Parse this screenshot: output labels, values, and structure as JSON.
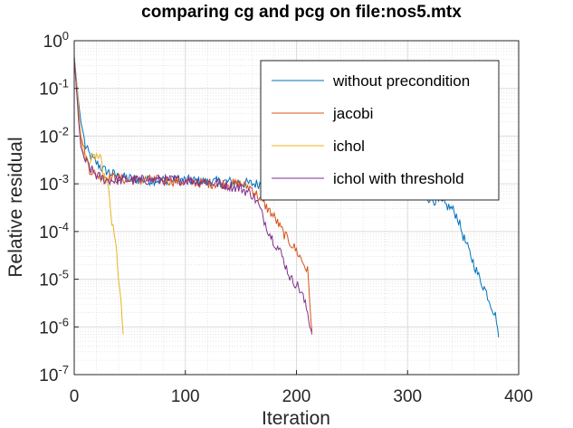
{
  "chart_data": {
    "type": "line",
    "title": "comparing cg and pcg on file:nos5.mtx",
    "xlabel": "Iteration",
    "ylabel": "Relative residual",
    "xlim": [
      0,
      400
    ],
    "ylim": [
      1e-07,
      1
    ],
    "yscale": "log",
    "grid": true,
    "minor_grid": true,
    "legend_position": "top-right",
    "x_ticks": [
      "0",
      "100",
      "200",
      "300",
      "400"
    ],
    "y_ticks": [
      {
        "base": "10",
        "exp": "0"
      },
      {
        "base": "10",
        "exp": "-1"
      },
      {
        "base": "10",
        "exp": "-2"
      },
      {
        "base": "10",
        "exp": "-3"
      },
      {
        "base": "10",
        "exp": "-4"
      },
      {
        "base": "10",
        "exp": "-5"
      },
      {
        "base": "10",
        "exp": "-6"
      },
      {
        "base": "10",
        "exp": "-7"
      }
    ],
    "series": [
      {
        "name": "without precondition",
        "color": "#0072BD",
        "points": [
          [
            0,
            0.45
          ],
          [
            2,
            0.15
          ],
          [
            4,
            0.05
          ],
          [
            6,
            0.02
          ],
          [
            8,
            0.012
          ],
          [
            10,
            0.006
          ],
          [
            14,
            0.004
          ],
          [
            18,
            0.003
          ],
          [
            22,
            0.0025
          ],
          [
            26,
            0.002
          ],
          [
            30,
            0.0018
          ],
          [
            35,
            0.0016
          ],
          [
            40,
            0.0014
          ],
          [
            50,
            0.0013
          ],
          [
            60,
            0.0012
          ],
          [
            80,
            0.0012
          ],
          [
            100,
            0.0012
          ],
          [
            120,
            0.0011
          ],
          [
            140,
            0.0011
          ],
          [
            160,
            0.001
          ],
          [
            180,
            0.001
          ],
          [
            200,
            0.001
          ],
          [
            220,
            0.001
          ],
          [
            240,
            0.0009
          ],
          [
            260,
            0.0009
          ],
          [
            280,
            0.0008
          ],
          [
            290,
            0.0008
          ],
          [
            300,
            0.0007
          ],
          [
            310,
            0.0006
          ],
          [
            320,
            0.0005
          ],
          [
            330,
            0.0004
          ],
          [
            340,
            0.0003
          ],
          [
            345,
            0.0002
          ],
          [
            350,
            8e-05
          ],
          [
            355,
            4e-05
          ],
          [
            360,
            2e-05
          ],
          [
            365,
            1e-05
          ],
          [
            370,
            6e-06
          ],
          [
            375,
            3e-06
          ],
          [
            380,
            1.5e-06
          ],
          [
            382,
            6e-07
          ]
        ]
      },
      {
        "name": "jacobi",
        "color": "#D95319",
        "points": [
          [
            0,
            0.5
          ],
          [
            2,
            0.1
          ],
          [
            4,
            0.03
          ],
          [
            6,
            0.01
          ],
          [
            10,
            0.004
          ],
          [
            14,
            0.002
          ],
          [
            20,
            0.0015
          ],
          [
            30,
            0.0014
          ],
          [
            50,
            0.0012
          ],
          [
            80,
            0.0012
          ],
          [
            100,
            0.0011
          ],
          [
            130,
            0.001
          ],
          [
            150,
            0.001
          ],
          [
            160,
            0.0008
          ],
          [
            170,
            0.0004
          ],
          [
            180,
            0.0002
          ],
          [
            190,
            8e-05
          ],
          [
            200,
            4e-05
          ],
          [
            210,
            1.5e-05
          ],
          [
            214,
            8e-07
          ]
        ]
      },
      {
        "name": "ichol",
        "color": "#EDB120",
        "points": [
          [
            0,
            0.45
          ],
          [
            3,
            0.08
          ],
          [
            6,
            0.008
          ],
          [
            10,
            0.003
          ],
          [
            15,
            0.003
          ],
          [
            20,
            0.004
          ],
          [
            24,
            0.003
          ],
          [
            26,
            0.0015
          ],
          [
            28,
            0.0012
          ],
          [
            30,
            0.001
          ],
          [
            32,
            0.0004
          ],
          [
            34,
            0.00015
          ],
          [
            36,
            8e-05
          ],
          [
            38,
            4e-05
          ],
          [
            40,
            1e-05
          ],
          [
            42,
            3e-06
          ],
          [
            44,
            7e-07
          ]
        ]
      },
      {
        "name": "ichol with threshold",
        "color": "#7E2F8E",
        "points": [
          [
            0,
            0.45
          ],
          [
            2,
            0.1
          ],
          [
            4,
            0.02
          ],
          [
            6,
            0.006
          ],
          [
            10,
            0.003
          ],
          [
            15,
            0.002
          ],
          [
            20,
            0.0015
          ],
          [
            25,
            0.0013
          ],
          [
            30,
            0.0012
          ],
          [
            40,
            0.0012
          ],
          [
            60,
            0.0012
          ],
          [
            80,
            0.0012
          ],
          [
            100,
            0.0012
          ],
          [
            120,
            0.0011
          ],
          [
            130,
            0.001
          ],
          [
            140,
            0.0009
          ],
          [
            150,
            0.0008
          ],
          [
            160,
            0.0006
          ],
          [
            165,
            0.0004
          ],
          [
            170,
            0.0002
          ],
          [
            175,
            0.0001
          ],
          [
            180,
            6e-05
          ],
          [
            185,
            4e-05
          ],
          [
            190,
            2e-05
          ],
          [
            195,
            1e-05
          ],
          [
            200,
            8e-06
          ],
          [
            205,
            5e-06
          ],
          [
            210,
            2e-06
          ],
          [
            214,
            7e-07
          ]
        ]
      }
    ]
  }
}
